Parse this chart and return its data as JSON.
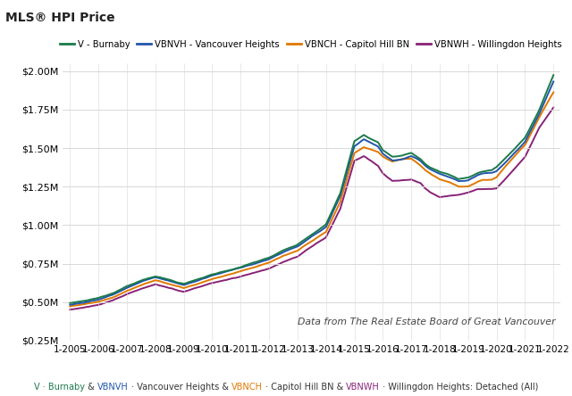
{
  "title": "MLS® HPI Price",
  "subtitle": "Data from The Real Estate Board of Great Vancouver",
  "series": {
    "V - Burnaby": {
      "color": "#1a7a4a",
      "linewidth": 1.4
    },
    "VBNVH - Vancouver Heights": {
      "color": "#2255aa",
      "linewidth": 1.4
    },
    "VBNCH - Capitol Hill BN": {
      "color": "#e07800",
      "linewidth": 1.4
    },
    "VBNWH - Willingdon Heights": {
      "color": "#882277",
      "linewidth": 1.4
    }
  },
  "x_labels": [
    "1-2005",
    "1-2006",
    "1-2007",
    "1-2008",
    "1-2009",
    "1-2010",
    "1-2011",
    "1-2012",
    "1-2013",
    "1-2014",
    "1-2015",
    "1-2016",
    "1-2017",
    "1-2018",
    "1-2019",
    "1-2020",
    "1-2021",
    "1-2022"
  ],
  "ylim": [
    250000,
    2050000
  ],
  "yticks": [
    250000,
    500000,
    750000,
    1000000,
    1250000,
    1500000,
    1750000,
    2000000
  ],
  "ytick_labels": [
    "$0.25M",
    "$0.50M",
    "$0.75M",
    "$1.00M",
    "$1.25M",
    "$1.50M",
    "$1.75M",
    "$2.00M"
  ],
  "background_color": "#ffffff",
  "plot_bg_color": "#ffffff",
  "grid_color": "#d8d8d8",
  "footer_parts": [
    {
      "text": "V · Burnaby",
      "color": "#1a7a4a"
    },
    {
      "text": " & ",
      "color": "#333333"
    },
    {
      "text": "VBNVH",
      "color": "#2255aa"
    },
    {
      "text": " · Vancouver Heights & ",
      "color": "#333333"
    },
    {
      "text": "VBNCH",
      "color": "#e07800"
    },
    {
      "text": " · Capitol Hill BN & ",
      "color": "#333333"
    },
    {
      "text": "VBNWH",
      "color": "#882277"
    },
    {
      "text": " · Willingdon Heights: Detached (All)",
      "color": "#333333"
    }
  ]
}
